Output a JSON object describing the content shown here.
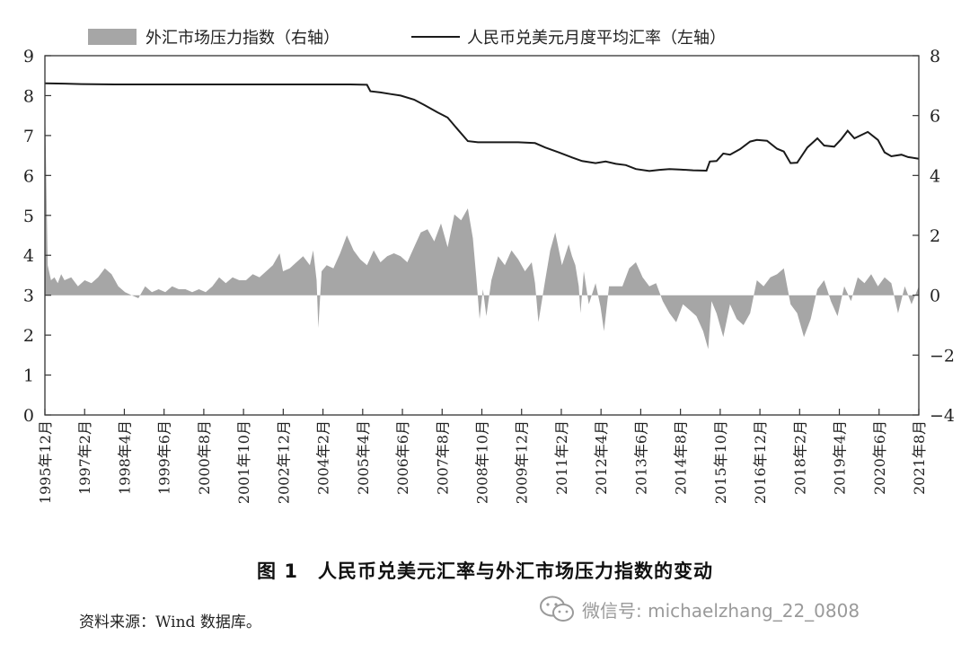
{
  "legend": {
    "area_label": "外汇市场压力指数（右轴）",
    "line_label": "人民币兑美元月度平均汇率（左轴）"
  },
  "caption": {
    "number": "图 1",
    "text": "人民币兑美元汇率与外汇市场压力指数的变动"
  },
  "source": "资料来源：Wind 数据库。",
  "watermark": {
    "icon": "wechat-icon",
    "text": "微信号: michaelzhang_22_0808"
  },
  "colors": {
    "line": "#1a1a1a",
    "area": "#a6a6a6",
    "axis": "#333333"
  },
  "chart_data": {
    "type": "line",
    "title": "",
    "x_tick_labels": [
      "1995年12月",
      "1997年2月",
      "1998年4月",
      "1999年6月",
      "2000年8月",
      "2001年10月",
      "2002年12月",
      "2004年2月",
      "2005年4月",
      "2006年6月",
      "2007年8月",
      "2008年10月",
      "2009年12月",
      "2011年2月",
      "2012年4月",
      "2013年6月",
      "2014年8月",
      "2015年10月",
      "2016年12月",
      "2018年2月",
      "2019年4月",
      "2020年6月",
      "2021年8月"
    ],
    "x_range": [
      1995.917,
      2021.917
    ],
    "ylim_left": [
      0,
      9
    ],
    "yticks_left": [
      0,
      1,
      2,
      3,
      4,
      5,
      6,
      7,
      8,
      9
    ],
    "ylim_right": [
      -4,
      8
    ],
    "yticks_right": [
      -4,
      -2,
      0,
      2,
      4,
      6,
      8
    ],
    "grid": false,
    "legend_position": "top",
    "series": [
      {
        "name": "人民币兑美元月度平均汇率（左轴）",
        "axis": "left",
        "kind": "line",
        "points": [
          [
            1995.92,
            8.31
          ],
          [
            1996.5,
            8.3
          ],
          [
            1997.0,
            8.29
          ],
          [
            1998.0,
            8.28
          ],
          [
            1999.0,
            8.28
          ],
          [
            2000.0,
            8.28
          ],
          [
            2001.0,
            8.28
          ],
          [
            2002.0,
            8.28
          ],
          [
            2003.0,
            8.28
          ],
          [
            2004.0,
            8.28
          ],
          [
            2005.0,
            8.28
          ],
          [
            2005.5,
            8.27
          ],
          [
            2005.6,
            8.11
          ],
          [
            2005.9,
            8.08
          ],
          [
            2006.2,
            8.04
          ],
          [
            2006.5,
            8.0
          ],
          [
            2006.9,
            7.9
          ],
          [
            2007.2,
            7.77
          ],
          [
            2007.6,
            7.58
          ],
          [
            2007.9,
            7.45
          ],
          [
            2008.2,
            7.15
          ],
          [
            2008.5,
            6.86
          ],
          [
            2008.8,
            6.83
          ],
          [
            2009.5,
            6.83
          ],
          [
            2010.0,
            6.83
          ],
          [
            2010.5,
            6.81
          ],
          [
            2010.8,
            6.7
          ],
          [
            2011.2,
            6.58
          ],
          [
            2011.6,
            6.45
          ],
          [
            2011.9,
            6.36
          ],
          [
            2012.3,
            6.31
          ],
          [
            2012.6,
            6.35
          ],
          [
            2012.9,
            6.29
          ],
          [
            2013.2,
            6.26
          ],
          [
            2013.5,
            6.16
          ],
          [
            2013.9,
            6.11
          ],
          [
            2014.2,
            6.14
          ],
          [
            2014.5,
            6.16
          ],
          [
            2014.8,
            6.15
          ],
          [
            2015.2,
            6.13
          ],
          [
            2015.6,
            6.12
          ],
          [
            2015.7,
            6.35
          ],
          [
            2015.9,
            6.36
          ],
          [
            2016.1,
            6.55
          ],
          [
            2016.3,
            6.52
          ],
          [
            2016.6,
            6.66
          ],
          [
            2016.9,
            6.85
          ],
          [
            2017.1,
            6.89
          ],
          [
            2017.4,
            6.87
          ],
          [
            2017.7,
            6.67
          ],
          [
            2017.9,
            6.6
          ],
          [
            2018.1,
            6.31
          ],
          [
            2018.3,
            6.32
          ],
          [
            2018.6,
            6.7
          ],
          [
            2018.9,
            6.93
          ],
          [
            2019.1,
            6.75
          ],
          [
            2019.4,
            6.72
          ],
          [
            2019.6,
            6.9
          ],
          [
            2019.8,
            7.12
          ],
          [
            2020.0,
            6.93
          ],
          [
            2020.4,
            7.09
          ],
          [
            2020.7,
            6.89
          ],
          [
            2020.9,
            6.58
          ],
          [
            2021.1,
            6.48
          ],
          [
            2021.4,
            6.52
          ],
          [
            2021.6,
            6.46
          ],
          [
            2021.917,
            6.42
          ]
        ]
      },
      {
        "name": "外汇市场压力指数（右轴）",
        "axis": "right",
        "kind": "area",
        "points": [
          [
            1995.92,
            6.5
          ],
          [
            1996.0,
            1.0
          ],
          [
            1996.1,
            0.5
          ],
          [
            1996.2,
            0.6
          ],
          [
            1996.3,
            0.4
          ],
          [
            1996.4,
            0.7
          ],
          [
            1996.5,
            0.5
          ],
          [
            1996.7,
            0.6
          ],
          [
            1996.9,
            0.3
          ],
          [
            1997.1,
            0.5
          ],
          [
            1997.3,
            0.4
          ],
          [
            1997.5,
            0.6
          ],
          [
            1997.7,
            0.9
          ],
          [
            1997.9,
            0.7
          ],
          [
            1998.1,
            0.3
          ],
          [
            1998.3,
            0.1
          ],
          [
            1998.5,
            0.0
          ],
          [
            1998.7,
            -0.1
          ],
          [
            1998.9,
            0.3
          ],
          [
            1999.1,
            0.1
          ],
          [
            1999.3,
            0.2
          ],
          [
            1999.5,
            0.1
          ],
          [
            1999.7,
            0.3
          ],
          [
            1999.9,
            0.2
          ],
          [
            2000.1,
            0.2
          ],
          [
            2000.3,
            0.1
          ],
          [
            2000.5,
            0.2
          ],
          [
            2000.7,
            0.1
          ],
          [
            2000.9,
            0.3
          ],
          [
            2001.1,
            0.6
          ],
          [
            2001.3,
            0.4
          ],
          [
            2001.5,
            0.6
          ],
          [
            2001.7,
            0.5
          ],
          [
            2001.9,
            0.5
          ],
          [
            2002.1,
            0.7
          ],
          [
            2002.3,
            0.6
          ],
          [
            2002.5,
            0.8
          ],
          [
            2002.7,
            1.0
          ],
          [
            2002.9,
            1.4
          ],
          [
            2003.0,
            0.8
          ],
          [
            2003.2,
            0.9
          ],
          [
            2003.4,
            1.1
          ],
          [
            2003.6,
            1.3
          ],
          [
            2003.8,
            1.0
          ],
          [
            2003.9,
            1.5
          ],
          [
            2004.0,
            0.5
          ],
          [
            2004.05,
            -1.1
          ],
          [
            2004.15,
            0.8
          ],
          [
            2004.3,
            1.0
          ],
          [
            2004.5,
            0.9
          ],
          [
            2004.7,
            1.4
          ],
          [
            2004.9,
            2.0
          ],
          [
            2005.1,
            1.5
          ],
          [
            2005.3,
            1.2
          ],
          [
            2005.5,
            1.0
          ],
          [
            2005.7,
            1.5
          ],
          [
            2005.9,
            1.1
          ],
          [
            2006.1,
            1.3
          ],
          [
            2006.3,
            1.4
          ],
          [
            2006.5,
            1.3
          ],
          [
            2006.7,
            1.1
          ],
          [
            2006.9,
            1.6
          ],
          [
            2007.1,
            2.1
          ],
          [
            2007.3,
            2.2
          ],
          [
            2007.5,
            1.8
          ],
          [
            2007.7,
            2.4
          ],
          [
            2007.9,
            1.6
          ],
          [
            2008.1,
            2.7
          ],
          [
            2008.3,
            2.5
          ],
          [
            2008.5,
            2.9
          ],
          [
            2008.65,
            1.9
          ],
          [
            2008.75,
            0.6
          ],
          [
            2008.85,
            -0.8
          ],
          [
            2008.95,
            0.2
          ],
          [
            2009.05,
            -0.7
          ],
          [
            2009.2,
            0.5
          ],
          [
            2009.4,
            1.3
          ],
          [
            2009.6,
            1.0
          ],
          [
            2009.8,
            1.5
          ],
          [
            2010.0,
            1.2
          ],
          [
            2010.2,
            0.8
          ],
          [
            2010.4,
            1.1
          ],
          [
            2010.5,
            0.4
          ],
          [
            2010.6,
            -0.9
          ],
          [
            2010.8,
            0.5
          ],
          [
            2010.95,
            1.5
          ],
          [
            2011.1,
            2.1
          ],
          [
            2011.3,
            1.0
          ],
          [
            2011.5,
            1.7
          ],
          [
            2011.6,
            1.3
          ],
          [
            2011.7,
            1.0
          ],
          [
            2011.8,
            0.3
          ],
          [
            2011.85,
            -0.6
          ],
          [
            2011.95,
            0.8
          ],
          [
            2012.1,
            -0.3
          ],
          [
            2012.3,
            0.4
          ],
          [
            2012.45,
            -0.4
          ],
          [
            2012.55,
            -1.2
          ],
          [
            2012.7,
            0.3
          ],
          [
            2012.9,
            0.3
          ],
          [
            2013.1,
            0.3
          ],
          [
            2013.3,
            0.9
          ],
          [
            2013.5,
            1.1
          ],
          [
            2013.7,
            0.6
          ],
          [
            2013.9,
            0.3
          ],
          [
            2014.1,
            0.4
          ],
          [
            2014.3,
            -0.2
          ],
          [
            2014.5,
            -0.6
          ],
          [
            2014.7,
            -0.9
          ],
          [
            2014.9,
            -0.3
          ],
          [
            2015.1,
            -0.5
          ],
          [
            2015.3,
            -0.7
          ],
          [
            2015.5,
            -1.2
          ],
          [
            2015.65,
            -1.8
          ],
          [
            2015.75,
            -0.2
          ],
          [
            2015.9,
            -0.6
          ],
          [
            2016.1,
            -1.4
          ],
          [
            2016.3,
            -0.3
          ],
          [
            2016.5,
            -0.8
          ],
          [
            2016.7,
            -1.0
          ],
          [
            2016.9,
            -0.6
          ],
          [
            2017.1,
            0.5
          ],
          [
            2017.3,
            0.3
          ],
          [
            2017.5,
            0.6
          ],
          [
            2017.7,
            0.7
          ],
          [
            2017.9,
            0.9
          ],
          [
            2018.1,
            -0.3
          ],
          [
            2018.3,
            -0.6
          ],
          [
            2018.5,
            -1.4
          ],
          [
            2018.7,
            -0.8
          ],
          [
            2018.9,
            0.2
          ],
          [
            2019.1,
            0.5
          ],
          [
            2019.3,
            -0.2
          ],
          [
            2019.5,
            -0.7
          ],
          [
            2019.7,
            0.3
          ],
          [
            2019.9,
            -0.2
          ],
          [
            2020.1,
            0.6
          ],
          [
            2020.3,
            0.4
          ],
          [
            2020.5,
            0.7
          ],
          [
            2020.7,
            0.3
          ],
          [
            2020.9,
            0.6
          ],
          [
            2021.1,
            0.4
          ],
          [
            2021.3,
            -0.6
          ],
          [
            2021.5,
            0.3
          ],
          [
            2021.7,
            -0.3
          ],
          [
            2021.917,
            0.3
          ]
        ]
      }
    ]
  }
}
